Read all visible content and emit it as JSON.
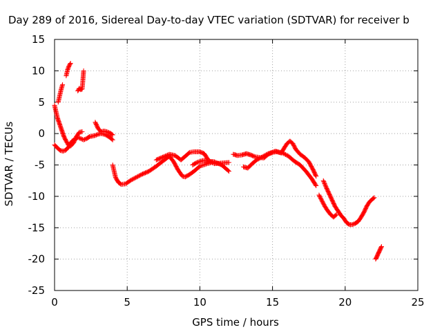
{
  "chart_data": {
    "type": "scatter",
    "title": "Day 289 of 2016, Sidereal Day-to-day VTEC variation (SDTVAR) for receiver b",
    "xlabel": "GPS time / hours",
    "ylabel": "SDTVAR / TECUs",
    "xlim": [
      0,
      25
    ],
    "ylim": [
      -25,
      15
    ],
    "xticks": [
      0,
      5,
      10,
      15,
      20,
      25
    ],
    "yticks": [
      -25,
      -20,
      -15,
      -10,
      -5,
      0,
      5,
      10,
      15
    ],
    "xtick_labels": [
      "0",
      "5",
      "10",
      "15",
      "20",
      "25"
    ],
    "ytick_labels": [
      "-25",
      "-20",
      "-15",
      "-10",
      "-5",
      "0",
      "5",
      "10",
      "15"
    ],
    "grid": true,
    "legend": "none",
    "marker": "+",
    "series": [
      {
        "name": "SDTVAR",
        "color": "#ff0000",
        "segments": [
          [
            [
              0.0,
              4.5
            ],
            [
              0.1,
              3.5
            ],
            [
              0.2,
              2.5
            ],
            [
              0.35,
              1.5
            ],
            [
              0.5,
              0.5
            ],
            [
              0.65,
              -0.5
            ],
            [
              0.8,
              -1.2
            ],
            [
              0.95,
              -1.8
            ],
            [
              1.1,
              -2.0
            ],
            [
              1.3,
              -1.5
            ],
            [
              1.5,
              -0.5
            ],
            [
              1.7,
              0.2
            ],
            [
              1.9,
              0.3
            ]
          ],
          [
            [
              0.0,
              -1.8
            ],
            [
              0.2,
              -2.3
            ],
            [
              0.4,
              -2.7
            ],
            [
              0.6,
              -2.8
            ],
            [
              0.8,
              -2.6
            ],
            [
              1.0,
              -2.0
            ],
            [
              1.2,
              -1.2
            ],
            [
              1.4,
              -0.9
            ],
            [
              1.6,
              -0.6
            ],
            [
              1.8,
              -0.8
            ],
            [
              2.0,
              -1.0
            ],
            [
              2.2,
              -0.8
            ],
            [
              2.4,
              -0.5
            ],
            [
              2.6,
              -0.4
            ],
            [
              2.8,
              -0.3
            ],
            [
              3.0,
              -0.1
            ],
            [
              3.2,
              0.0
            ],
            [
              3.4,
              -0.1
            ],
            [
              3.6,
              -0.3
            ],
            [
              3.8,
              -0.6
            ],
            [
              4.0,
              -1.0
            ]
          ],
          [
            [
              2.8,
              1.8
            ],
            [
              3.0,
              0.8
            ],
            [
              3.2,
              0.3
            ],
            [
              3.4,
              0.4
            ],
            [
              3.6,
              0.3
            ],
            [
              3.8,
              0.1
            ],
            [
              4.0,
              -0.2
            ]
          ],
          [
            [
              0.25,
              5.0
            ],
            [
              0.35,
              6.0
            ],
            [
              0.45,
              7.0
            ],
            [
              0.55,
              7.8
            ]
          ],
          [
            [
              0.8,
              9.2
            ],
            [
              0.9,
              10.2
            ],
            [
              1.0,
              10.8
            ],
            [
              1.1,
              11.2
            ]
          ],
          [
            [
              1.6,
              6.8
            ],
            [
              1.7,
              7.2
            ],
            [
              1.8,
              7.0
            ],
            [
              1.9,
              7.1
            ],
            [
              1.95,
              8.5
            ],
            [
              2.0,
              10.0
            ]
          ],
          [
            [
              4.0,
              -5.0
            ],
            [
              4.1,
              -6.0
            ],
            [
              4.2,
              -7.0
            ],
            [
              4.4,
              -7.8
            ],
            [
              4.6,
              -8.1
            ],
            [
              4.9,
              -8.0
            ],
            [
              5.2,
              -7.5
            ],
            [
              5.6,
              -7.0
            ],
            [
              6.0,
              -6.5
            ],
            [
              6.5,
              -6.0
            ],
            [
              7.0,
              -5.2
            ],
            [
              7.5,
              -4.3
            ],
            [
              7.9,
              -3.6
            ],
            [
              8.2,
              -4.5
            ],
            [
              8.5,
              -5.8
            ],
            [
              8.8,
              -6.8
            ],
            [
              9.0,
              -6.9
            ],
            [
              9.3,
              -6.5
            ],
            [
              9.6,
              -6.0
            ],
            [
              10.0,
              -5.2
            ],
            [
              10.5,
              -4.8
            ],
            [
              11.0,
              -4.5
            ],
            [
              11.5,
              -5.0
            ],
            [
              12.0,
              -6.0
            ]
          ],
          [
            [
              7.0,
              -4.2
            ],
            [
              7.5,
              -3.7
            ],
            [
              7.9,
              -3.3
            ],
            [
              8.3,
              -3.5
            ],
            [
              8.7,
              -4.2
            ],
            [
              9.0,
              -3.6
            ],
            [
              9.3,
              -3.0
            ],
            [
              9.6,
              -2.9
            ],
            [
              10.0,
              -2.9
            ],
            [
              10.3,
              -3.2
            ],
            [
              10.6,
              -4.3
            ],
            [
              11.0,
              -4.8
            ],
            [
              11.5,
              -4.7
            ],
            [
              12.0,
              -4.6
            ]
          ],
          [
            [
              9.5,
              -5.0
            ],
            [
              9.8,
              -4.6
            ],
            [
              10.2,
              -4.3
            ],
            [
              10.6,
              -4.4
            ],
            [
              11.0,
              -4.5
            ]
          ],
          [
            [
              12.3,
              -3.3
            ],
            [
              12.6,
              -3.5
            ],
            [
              12.9,
              -3.4
            ],
            [
              13.2,
              -3.2
            ],
            [
              13.5,
              -3.4
            ],
            [
              13.8,
              -3.7
            ],
            [
              14.1,
              -3.8
            ],
            [
              14.4,
              -3.9
            ],
            [
              14.7,
              -3.3
            ],
            [
              15.0,
              -3.0
            ],
            [
              15.3,
              -2.9
            ],
            [
              15.6,
              -3.1
            ],
            [
              15.8,
              -2.3
            ],
            [
              16.0,
              -1.6
            ],
            [
              16.2,
              -1.2
            ],
            [
              16.4,
              -1.6
            ],
            [
              16.6,
              -2.5
            ],
            [
              16.9,
              -3.3
            ],
            [
              17.2,
              -3.8
            ],
            [
              17.5,
              -4.5
            ],
            [
              17.8,
              -5.8
            ],
            [
              18.0,
              -6.8
            ]
          ],
          [
            [
              13.0,
              -5.3
            ],
            [
              13.3,
              -5.5
            ],
            [
              13.6,
              -4.8
            ],
            [
              13.9,
              -4.2
            ],
            [
              14.3,
              -3.7
            ],
            [
              14.7,
              -3.2
            ],
            [
              15.2,
              -2.8
            ],
            [
              15.7,
              -3.1
            ],
            [
              16.1,
              -3.6
            ],
            [
              16.5,
              -4.4
            ],
            [
              16.9,
              -5.0
            ],
            [
              17.3,
              -6.0
            ],
            [
              17.7,
              -7.2
            ],
            [
              18.0,
              -8.3
            ]
          ],
          [
            [
              18.2,
              -9.8
            ],
            [
              18.4,
              -10.7
            ],
            [
              18.6,
              -11.6
            ],
            [
              18.8,
              -12.3
            ],
            [
              19.0,
              -12.9
            ],
            [
              19.2,
              -13.3
            ],
            [
              19.4,
              -12.9
            ]
          ],
          [
            [
              18.5,
              -7.5
            ],
            [
              18.7,
              -8.6
            ],
            [
              18.9,
              -9.6
            ],
            [
              19.1,
              -10.6
            ],
            [
              19.3,
              -11.6
            ],
            [
              19.5,
              -12.3
            ],
            [
              19.7,
              -13.0
            ],
            [
              19.9,
              -13.5
            ],
            [
              20.1,
              -14.2
            ],
            [
              20.3,
              -14.5
            ],
            [
              20.5,
              -14.5
            ],
            [
              20.7,
              -14.3
            ],
            [
              20.9,
              -14.0
            ],
            [
              21.1,
              -13.3
            ],
            [
              21.3,
              -12.5
            ],
            [
              21.5,
              -11.5
            ],
            [
              21.7,
              -10.8
            ],
            [
              21.9,
              -10.4
            ],
            [
              22.0,
              -10.2
            ]
          ],
          [
            [
              22.1,
              -20.0
            ],
            [
              22.2,
              -19.5
            ],
            [
              22.3,
              -19.0
            ],
            [
              22.4,
              -18.5
            ],
            [
              22.5,
              -18.0
            ]
          ]
        ]
      }
    ]
  }
}
